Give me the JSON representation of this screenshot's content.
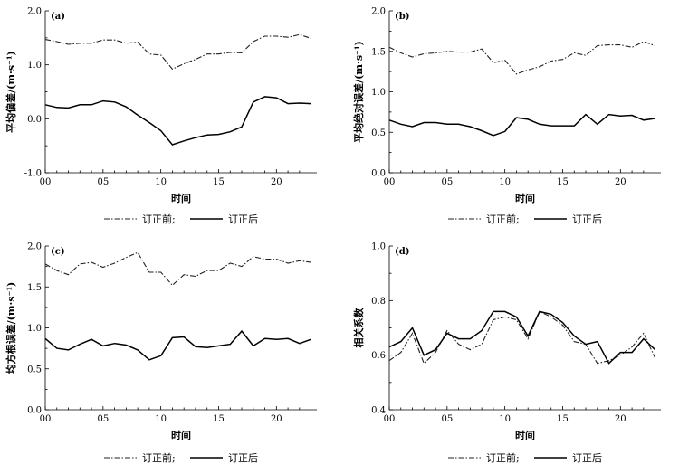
{
  "chart_data": [
    {
      "type": "line",
      "panel_label": "(a)",
      "xlabel": "时间",
      "ylabel": "平均偏差/(m·s⁻¹)",
      "xlim": [
        0,
        23.5
      ],
      "ylim": [
        -1.0,
        2.0
      ],
      "xticks": [
        "00",
        "05",
        "10",
        "15",
        "20"
      ],
      "yticks": [
        "-1.0",
        "0.0",
        "1.0",
        "2.0"
      ],
      "x": [
        0,
        1,
        2,
        3,
        4,
        5,
        6,
        7,
        8,
        9,
        10,
        11,
        12,
        13,
        14,
        15,
        16,
        17,
        18,
        19,
        20,
        21,
        22,
        23
      ],
      "series": [
        {
          "name": "订正前;",
          "style": "dashdot",
          "values": [
            1.47,
            1.43,
            1.38,
            1.4,
            1.4,
            1.46,
            1.46,
            1.4,
            1.42,
            1.2,
            1.18,
            0.92,
            1.02,
            1.1,
            1.2,
            1.2,
            1.23,
            1.22,
            1.43,
            1.53,
            1.53,
            1.51,
            1.56,
            1.49
          ]
        },
        {
          "name": "订正后",
          "style": "solid",
          "values": [
            0.26,
            0.21,
            0.2,
            0.26,
            0.26,
            0.33,
            0.31,
            0.22,
            0.07,
            -0.07,
            -0.22,
            -0.48,
            -0.41,
            -0.35,
            -0.3,
            -0.29,
            -0.24,
            -0.15,
            0.31,
            0.41,
            0.39,
            0.28,
            0.29,
            0.28
          ]
        }
      ]
    },
    {
      "type": "line",
      "panel_label": "(b)",
      "xlabel": "时间",
      "ylabel": "平均绝对误差/(m·s⁻¹)",
      "xlim": [
        0,
        23.5
      ],
      "ylim": [
        0.0,
        2.0
      ],
      "xticks": [
        "00",
        "05",
        "10",
        "15",
        "20"
      ],
      "yticks": [
        "0.0",
        "0.5",
        "1.0",
        "1.5",
        "2.0"
      ],
      "x": [
        0,
        1,
        2,
        3,
        4,
        5,
        6,
        7,
        8,
        9,
        10,
        11,
        12,
        13,
        14,
        15,
        16,
        17,
        18,
        19,
        20,
        21,
        22,
        23
      ],
      "series": [
        {
          "name": "订正前;",
          "style": "dashdot",
          "values": [
            1.55,
            1.48,
            1.43,
            1.47,
            1.48,
            1.5,
            1.49,
            1.49,
            1.53,
            1.36,
            1.39,
            1.22,
            1.27,
            1.31,
            1.38,
            1.4,
            1.48,
            1.45,
            1.57,
            1.58,
            1.58,
            1.55,
            1.62,
            1.57
          ]
        },
        {
          "name": "订正后",
          "style": "solid",
          "values": [
            0.65,
            0.6,
            0.57,
            0.62,
            0.62,
            0.6,
            0.6,
            0.57,
            0.52,
            0.46,
            0.51,
            0.68,
            0.66,
            0.6,
            0.58,
            0.58,
            0.58,
            0.72,
            0.6,
            0.72,
            0.7,
            0.71,
            0.65,
            0.67
          ]
        }
      ]
    },
    {
      "type": "line",
      "panel_label": "(c)",
      "xlabel": "时间",
      "ylabel": "均方根误差/(m·s⁻¹)",
      "xlim": [
        0,
        23.5
      ],
      "ylim": [
        0.0,
        2.0
      ],
      "xticks": [
        "00",
        "05",
        "10",
        "15",
        "20"
      ],
      "yticks": [
        "0.0",
        "0.5",
        "1.0",
        "1.5",
        "2.0"
      ],
      "x": [
        0,
        1,
        2,
        3,
        4,
        5,
        6,
        7,
        8,
        9,
        10,
        11,
        12,
        13,
        14,
        15,
        16,
        17,
        18,
        19,
        20,
        21,
        22,
        23
      ],
      "series": [
        {
          "name": "订正前;",
          "style": "dashdot",
          "values": [
            1.78,
            1.7,
            1.65,
            1.78,
            1.8,
            1.74,
            1.79,
            1.86,
            1.92,
            1.68,
            1.68,
            1.52,
            1.65,
            1.63,
            1.7,
            1.7,
            1.79,
            1.75,
            1.87,
            1.84,
            1.84,
            1.79,
            1.82,
            1.8
          ]
        },
        {
          "name": "订正后",
          "style": "solid",
          "values": [
            0.87,
            0.75,
            0.73,
            0.8,
            0.86,
            0.78,
            0.81,
            0.79,
            0.73,
            0.61,
            0.66,
            0.88,
            0.89,
            0.77,
            0.76,
            0.78,
            0.8,
            0.96,
            0.78,
            0.87,
            0.86,
            0.87,
            0.81,
            0.86
          ]
        }
      ]
    },
    {
      "type": "line",
      "panel_label": "(d)",
      "xlabel": "时间",
      "ylabel": "相关系数",
      "xlim": [
        0,
        23.5
      ],
      "ylim": [
        0.4,
        1.0
      ],
      "xticks": [
        "00",
        "05",
        "10",
        "15",
        "20"
      ],
      "yticks": [
        "0.4",
        "0.6",
        "0.8",
        "1.0"
      ],
      "x": [
        0,
        1,
        2,
        3,
        4,
        5,
        6,
        7,
        8,
        9,
        10,
        11,
        12,
        13,
        14,
        15,
        16,
        17,
        18,
        19,
        20,
        21,
        22,
        23
      ],
      "series": [
        {
          "name": "订正前;",
          "style": "dashdot",
          "values": [
            0.58,
            0.61,
            0.68,
            0.57,
            0.61,
            0.69,
            0.64,
            0.62,
            0.64,
            0.73,
            0.74,
            0.73,
            0.66,
            0.76,
            0.74,
            0.71,
            0.65,
            0.64,
            0.57,
            0.58,
            0.6,
            0.63,
            0.68,
            0.59
          ]
        },
        {
          "name": "订正后",
          "style": "solid",
          "values": [
            0.63,
            0.65,
            0.7,
            0.6,
            0.62,
            0.68,
            0.66,
            0.66,
            0.69,
            0.76,
            0.76,
            0.74,
            0.67,
            0.76,
            0.75,
            0.72,
            0.67,
            0.64,
            0.65,
            0.57,
            0.61,
            0.61,
            0.66,
            0.62
          ]
        }
      ]
    }
  ]
}
